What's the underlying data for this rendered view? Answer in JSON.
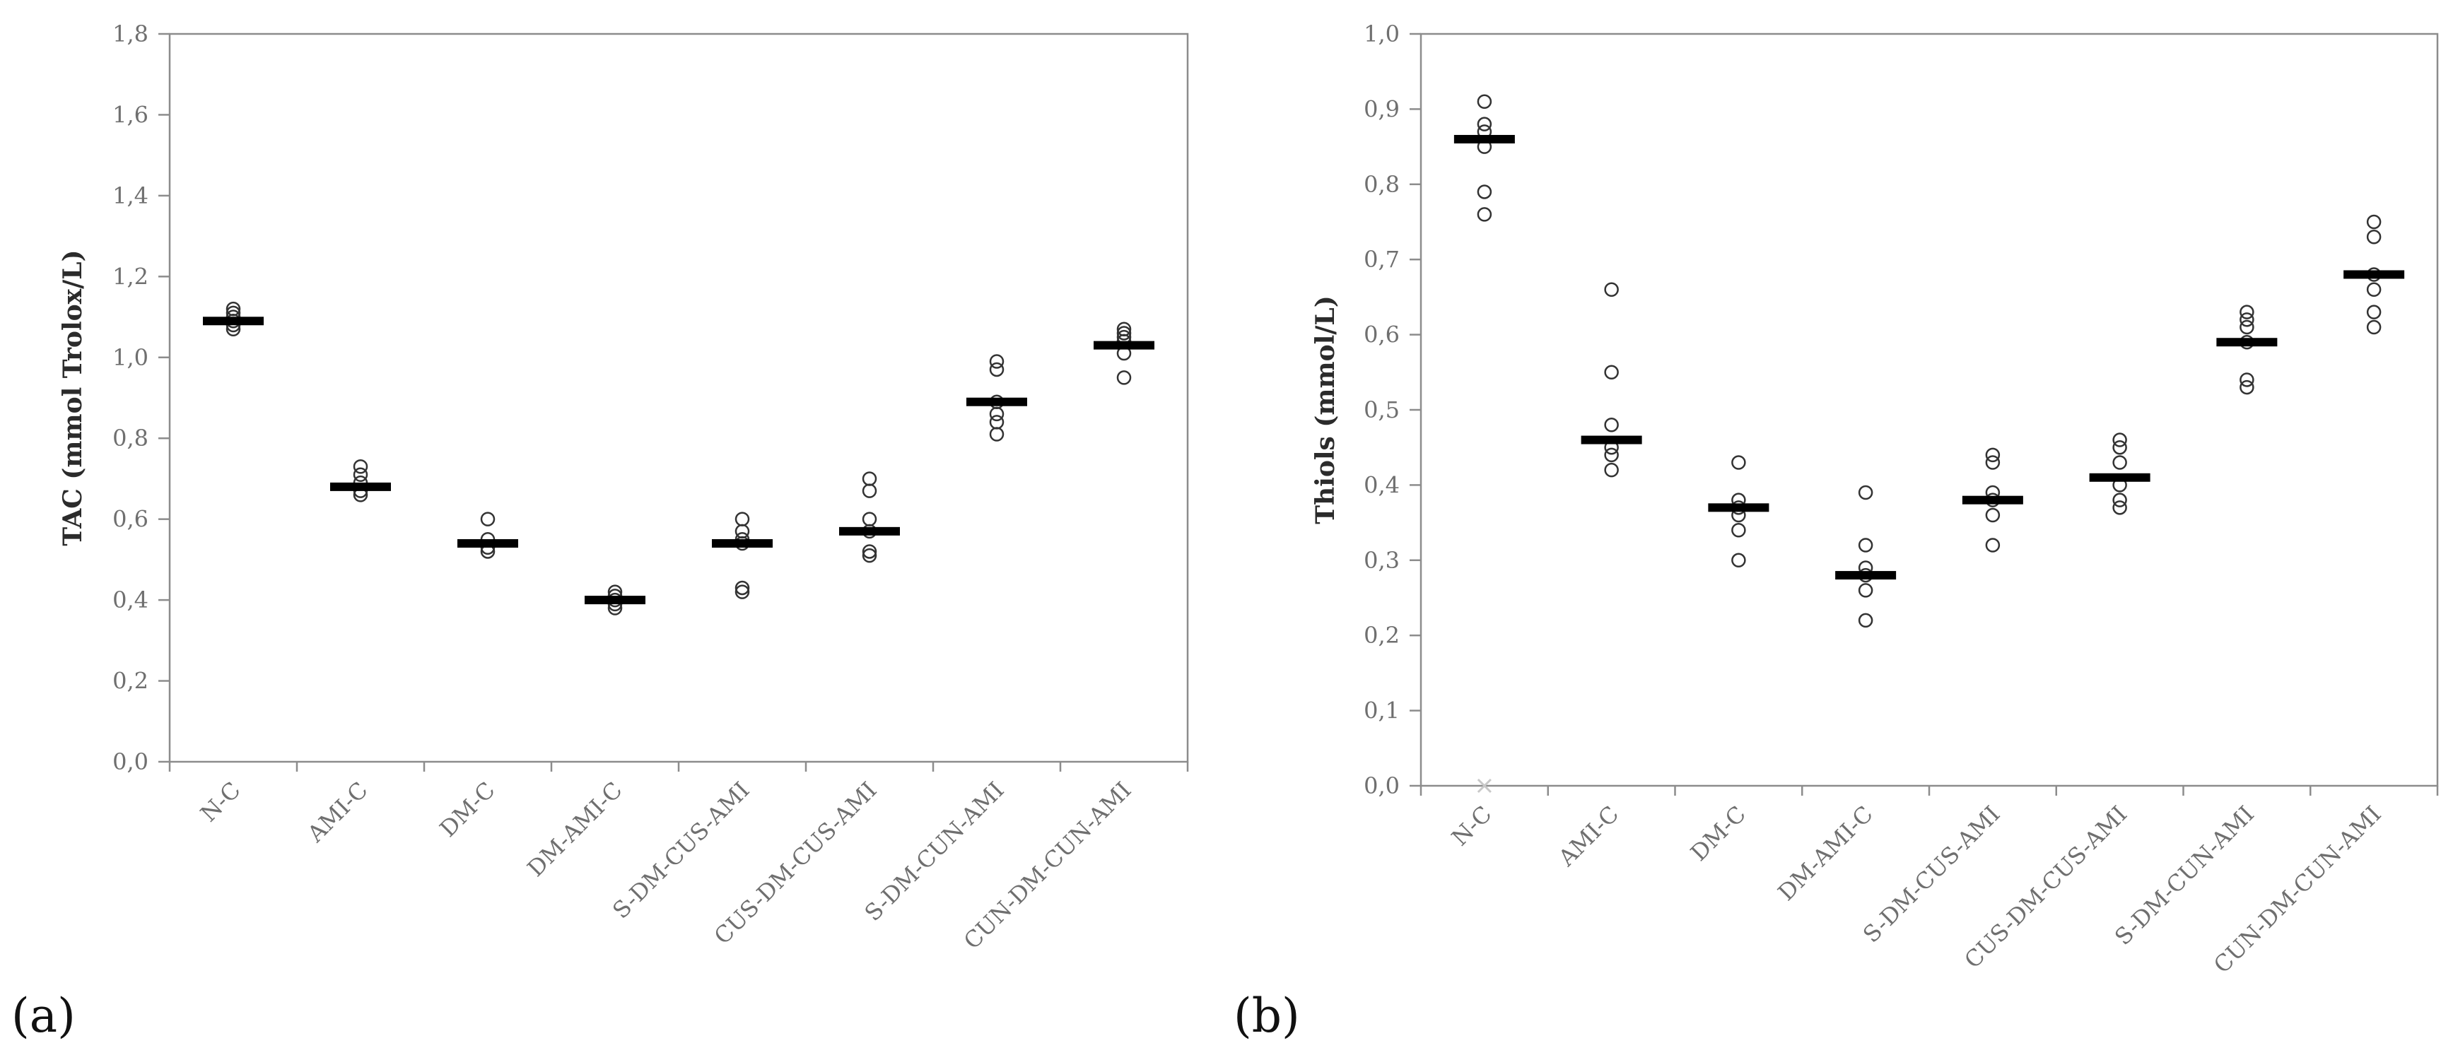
{
  "figure": {
    "panel_a_label": "(a)",
    "panel_b_label": "(b)"
  },
  "chart_data": [
    {
      "type": "scatter",
      "title": "",
      "xlabel": "",
      "ylabel": "TAC (mmol Trolox/L)",
      "ylim": [
        0,
        1.8
      ],
      "ytick_step": 0.2,
      "yticks": [
        "0,0",
        "0,2",
        "0,4",
        "0,6",
        "0,8",
        "1,0",
        "1,2",
        "1,4",
        "1,6",
        "1,8"
      ],
      "grid": false,
      "categories": [
        "N-C",
        "AMI-C",
        "DM-C",
        "DM-AMI-C",
        "S-DM-CUS-AMI",
        "CUS-DM-CUS-AMI",
        "S-DM-CUN-AMI",
        "CUN-DM-CUN-AMI"
      ],
      "medians": [
        1.09,
        0.68,
        0.54,
        0.4,
        0.54,
        0.57,
        0.89,
        1.03
      ],
      "points": [
        [
          1.12,
          1.11,
          1.1,
          1.09,
          1.08,
          1.07
        ],
        [
          0.73,
          0.71,
          0.69,
          0.67,
          0.66
        ],
        [
          0.6,
          0.55,
          0.53,
          0.52
        ],
        [
          0.42,
          0.41,
          0.4,
          0.39,
          0.38
        ],
        [
          0.6,
          0.57,
          0.55,
          0.54,
          0.43,
          0.42
        ],
        [
          0.7,
          0.67,
          0.6,
          0.57,
          0.52,
          0.51
        ],
        [
          0.99,
          0.97,
          0.89,
          0.86,
          0.84,
          0.81
        ],
        [
          1.07,
          1.06,
          1.05,
          1.04,
          1.01,
          0.95
        ]
      ],
      "outliers": []
    },
    {
      "type": "scatter",
      "title": "",
      "xlabel": "",
      "ylabel": "Thiols (mmol/L)",
      "ylim": [
        0,
        1.0
      ],
      "ytick_step": 0.1,
      "yticks": [
        "0,0",
        "0,1",
        "0,2",
        "0,3",
        "0,4",
        "0,5",
        "0,6",
        "0,7",
        "0,8",
        "0,9",
        "1,0"
      ],
      "grid": false,
      "categories": [
        "N-C",
        "AMI-C",
        "DM-C",
        "DM-AMI-C",
        "S-DM-CUS-AMI",
        "CUS-DM-CUS-AMI",
        "S-DM-CUN-AMI",
        "CUN-DM-CUN-AMI"
      ],
      "medians": [
        0.86,
        0.46,
        0.37,
        0.28,
        0.38,
        0.41,
        0.59,
        0.68
      ],
      "points": [
        [
          0.91,
          0.88,
          0.87,
          0.85,
          0.79,
          0.76
        ],
        [
          0.66,
          0.55,
          0.48,
          0.45,
          0.44,
          0.42
        ],
        [
          0.43,
          0.38,
          0.37,
          0.36,
          0.34,
          0.3
        ],
        [
          0.39,
          0.32,
          0.29,
          0.28,
          0.26,
          0.22
        ],
        [
          0.44,
          0.43,
          0.39,
          0.38,
          0.36,
          0.32
        ],
        [
          0.46,
          0.45,
          0.43,
          0.4,
          0.38,
          0.37
        ],
        [
          0.63,
          0.62,
          0.61,
          0.59,
          0.54,
          0.53
        ],
        [
          0.75,
          0.73,
          0.68,
          0.66,
          0.63,
          0.61
        ]
      ],
      "outliers": [
        {
          "category": "N-C",
          "value": 0.0,
          "marker": "x"
        }
      ]
    }
  ]
}
